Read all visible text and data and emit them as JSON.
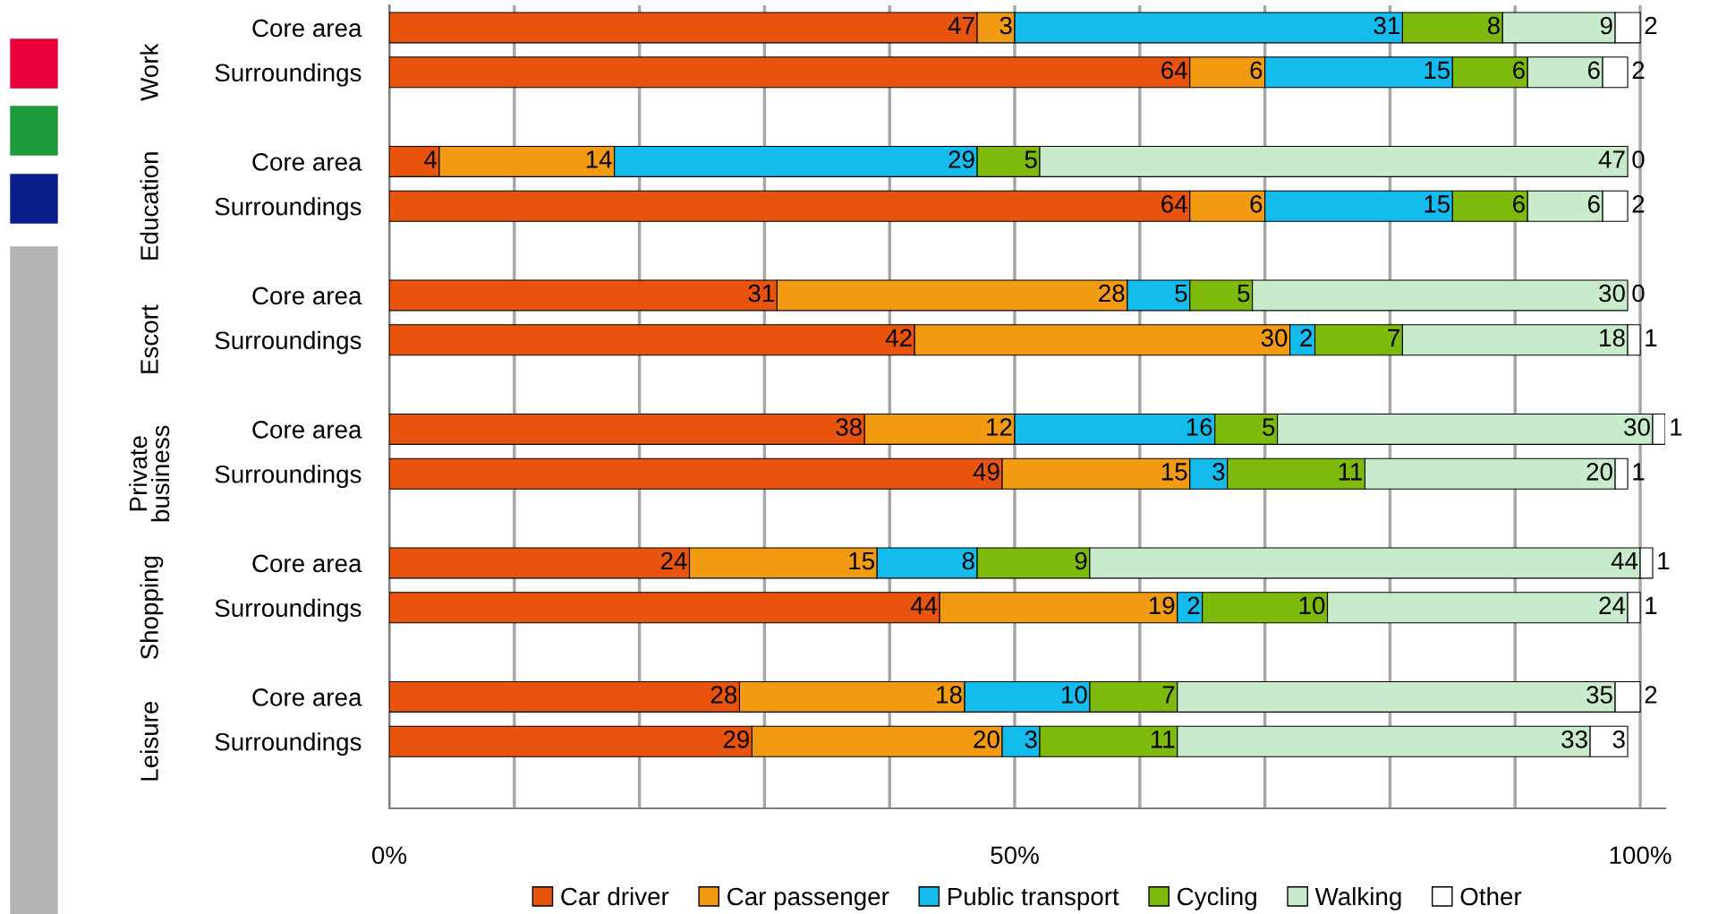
{
  "chart_data": {
    "type": "bar",
    "orientation": "horizontal",
    "stacked": true,
    "data_labels": true,
    "grid": "x",
    "legend": "bottom",
    "categories": [
      "Core area",
      "Surroundings",
      null,
      "Core area",
      "Surroundings",
      null,
      "Core area",
      "Surroundings",
      null,
      "Core area",
      "Surroundings",
      null,
      "Core area",
      "Surroundings",
      null,
      "Core area",
      "Surroundings",
      null
    ],
    "annotations": [
      "Work",
      "Education",
      "Escort",
      "Private business",
      "Shopping",
      "Leisure"
    ],
    "xlim": [
      0,
      102
    ],
    "xticks": [
      {
        "value": 0,
        "label": "0%"
      },
      {
        "value": 10,
        "label": null
      },
      {
        "value": 20,
        "label": null
      },
      {
        "value": 30,
        "label": null
      },
      {
        "value": 40,
        "label": null
      },
      {
        "value": 50,
        "label": "50%"
      },
      {
        "value": 60,
        "label": null
      },
      {
        "value": 70,
        "label": null
      },
      {
        "value": 80,
        "label": null
      },
      {
        "value": 90,
        "label": null
      },
      {
        "value": 100,
        "label": "100%"
      }
    ],
    "series": [
      {
        "name": "Car driver",
        "color": "#e8540e",
        "values": [
          47,
          64,
          null,
          4,
          64,
          null,
          31,
          42,
          null,
          38,
          49,
          null,
          24,
          44,
          null,
          28,
          29,
          null
        ]
      },
      {
        "name": "Car passenger",
        "color": "#f29a12",
        "values": [
          3,
          6,
          null,
          14,
          6,
          null,
          28,
          30,
          null,
          12,
          15,
          null,
          15,
          19,
          null,
          18,
          20,
          null
        ]
      },
      {
        "name": "Public transport",
        "color": "#14bcee",
        "values": [
          31,
          15,
          null,
          29,
          15,
          null,
          5,
          2,
          null,
          16,
          3,
          null,
          8,
          2,
          null,
          10,
          3,
          null
        ]
      },
      {
        "name": "Cycling",
        "color": "#7dba0c",
        "values": [
          8,
          6,
          null,
          5,
          6,
          null,
          5,
          7,
          null,
          5,
          11,
          null,
          9,
          10,
          null,
          7,
          11,
          null
        ]
      },
      {
        "name": "Walking",
        "color": "#c8eccb",
        "values": [
          9,
          6,
          null,
          47,
          6,
          null,
          30,
          18,
          null,
          30,
          20,
          null,
          44,
          24,
          null,
          35,
          33,
          null
        ]
      },
      {
        "name": "Other",
        "color": "#ffffff",
        "values": [
          2,
          2,
          null,
          0,
          2,
          null,
          0,
          1,
          null,
          1,
          1,
          null,
          1,
          1,
          null,
          2,
          3,
          null
        ]
      }
    ]
  }
}
